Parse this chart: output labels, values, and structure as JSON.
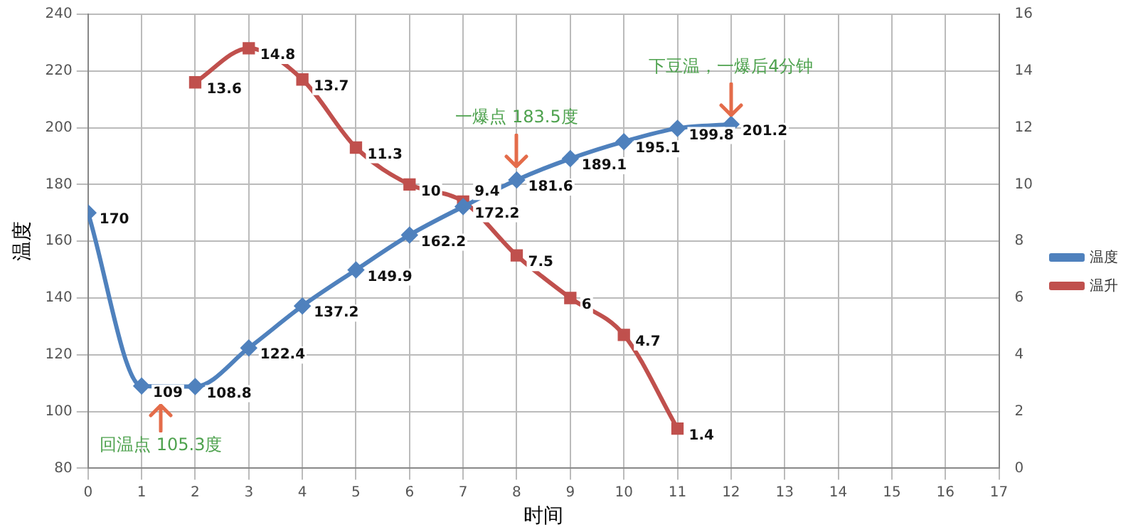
{
  "chart_data": {
    "type": "line",
    "xlabel": "时间",
    "ylabel": "温度",
    "xlim": [
      0,
      17
    ],
    "xticks": [
      0,
      1,
      2,
      3,
      4,
      5,
      6,
      7,
      8,
      9,
      10,
      11,
      12,
      13,
      14,
      15,
      16,
      17
    ],
    "ylim": [
      80,
      240
    ],
    "yticks": [
      80,
      100,
      120,
      140,
      160,
      180,
      200,
      220,
      240
    ],
    "y2lim": [
      0,
      16
    ],
    "y2ticks": [
      0,
      2,
      4,
      6,
      8,
      10,
      12,
      14,
      16
    ],
    "grid": true,
    "legend": "right",
    "data_labels": true,
    "series": [
      {
        "name": "温度",
        "color": "#4f81bd",
        "marker": "diamond",
        "x": [
          0,
          1,
          2,
          3,
          4,
          5,
          6,
          7,
          8,
          9,
          10,
          11,
          12
        ],
        "values": [
          170,
          109,
          108.8,
          122.4,
          137.2,
          149.9,
          162.2,
          172.2,
          181.6,
          189.1,
          195.1,
          199.8,
          201.2
        ]
      },
      {
        "name": "温升",
        "color": "#c0504d",
        "marker": "square",
        "axis": "y2",
        "x": [
          2,
          3,
          4,
          5,
          6,
          7,
          8,
          9,
          10,
          11
        ],
        "values": [
          13.6,
          14.8,
          13.7,
          11.3,
          10,
          9.4,
          7.5,
          6,
          4.7,
          1.4
        ]
      }
    ],
    "annotations": [
      "回温点 105.3度",
      {
        "text": "一爆点 183.5度",
        "x": 8,
        "y": 183.5
      },
      {
        "text": "下豆温，一爆后4分钟",
        "x": 12,
        "y": 201.2
      }
    ]
  }
}
